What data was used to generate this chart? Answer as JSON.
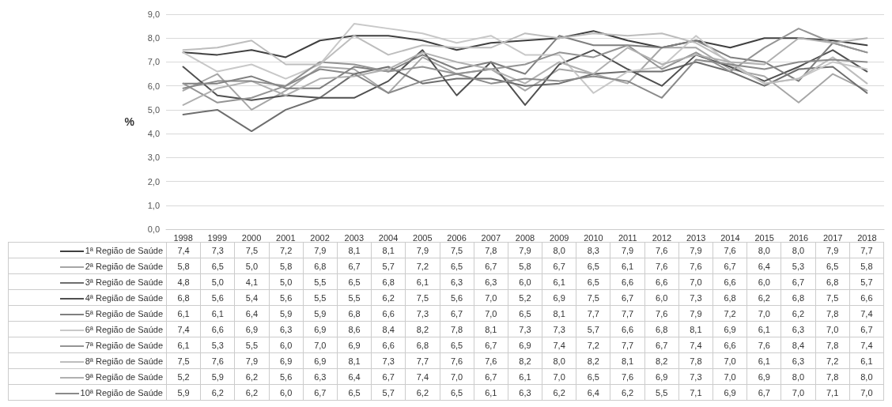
{
  "chart_data": {
    "type": "line",
    "ylabel": "%",
    "categories": [
      "1998",
      "1999",
      "2000",
      "2001",
      "2002",
      "2003",
      "2004",
      "2005",
      "2006",
      "2007",
      "2008",
      "2009",
      "2010",
      "2011",
      "2012",
      "2013",
      "2014",
      "2015",
      "2016",
      "2017",
      "2018"
    ],
    "series": [
      {
        "name": "1ª Região de Saúde",
        "color": "#404040",
        "values": [
          7.4,
          7.3,
          7.5,
          7.2,
          7.9,
          8.1,
          8.1,
          7.9,
          7.5,
          7.8,
          7.9,
          8.0,
          8.3,
          7.9,
          7.6,
          7.9,
          7.6,
          8.0,
          8.0,
          7.9,
          7.7
        ],
        "value_labels": [
          "7,4",
          "7,3",
          "7,5",
          "7,2",
          "7,9",
          "8,1",
          "8,1",
          "7,9",
          "7,5",
          "7,8",
          "7,9",
          "8,0",
          "8,3",
          "7,9",
          "7,6",
          "7,9",
          "7,6",
          "8,0",
          "8,0",
          "7,9",
          "7,7"
        ]
      },
      {
        "name": "2ª Região de Saúde",
        "color": "#a6a6a6",
        "values": [
          5.8,
          6.5,
          5.0,
          5.8,
          6.8,
          6.7,
          5.7,
          7.2,
          6.5,
          6.7,
          5.8,
          6.7,
          6.5,
          6.1,
          7.6,
          7.6,
          6.7,
          6.4,
          5.3,
          6.5,
          5.8
        ],
        "value_labels": [
          "5,8",
          "6,5",
          "5,0",
          "5,8",
          "6,8",
          "6,7",
          "5,7",
          "7,2",
          "6,5",
          "6,7",
          "5,8",
          "6,7",
          "6,5",
          "6,1",
          "7,6",
          "7,6",
          "6,7",
          "6,4",
          "5,3",
          "6,5",
          "5,8"
        ]
      },
      {
        "name": "3ª Região de Saúde",
        "color": "#6e6e6e",
        "values": [
          4.8,
          5.0,
          4.1,
          5.0,
          5.5,
          6.5,
          6.8,
          6.1,
          6.3,
          6.3,
          6.0,
          6.1,
          6.5,
          6.6,
          6.6,
          7.0,
          6.6,
          6.0,
          6.7,
          6.8,
          5.7
        ],
        "value_labels": [
          "4,8",
          "5,0",
          "4,1",
          "5,0",
          "5,5",
          "6,5",
          "6,8",
          "6,1",
          "6,3",
          "6,3",
          "6,0",
          "6,1",
          "6,5",
          "6,6",
          "6,6",
          "7,0",
          "6,6",
          "6,0",
          "6,7",
          "6,8",
          "5,7"
        ]
      },
      {
        "name": "4ª Região de Saúde",
        "color": "#505050",
        "values": [
          6.8,
          5.6,
          5.4,
          5.6,
          5.5,
          5.5,
          6.2,
          7.5,
          5.6,
          7.0,
          5.2,
          6.9,
          7.5,
          6.7,
          6.0,
          7.3,
          6.8,
          6.2,
          6.8,
          7.5,
          6.6
        ],
        "value_labels": [
          "6,8",
          "5,6",
          "5,4",
          "5,6",
          "5,5",
          "5,5",
          "6,2",
          "7,5",
          "5,6",
          "7,0",
          "5,2",
          "6,9",
          "7,5",
          "6,7",
          "6,0",
          "7,3",
          "6,8",
          "6,2",
          "6,8",
          "7,5",
          "6,6"
        ]
      },
      {
        "name": "5ª Região de Saúde",
        "color": "#7f7f7f",
        "values": [
          6.1,
          6.1,
          6.4,
          5.9,
          5.9,
          6.8,
          6.6,
          7.3,
          6.7,
          7.0,
          6.5,
          8.1,
          7.7,
          7.7,
          7.6,
          7.9,
          7.2,
          7.0,
          6.2,
          7.8,
          7.4
        ],
        "value_labels": [
          "6,1",
          "6,1",
          "6,4",
          "5,9",
          "5,9",
          "6,8",
          "6,6",
          "7,3",
          "6,7",
          "7,0",
          "6,5",
          "8,1",
          "7,7",
          "7,7",
          "7,6",
          "7,9",
          "7,2",
          "7,0",
          "6,2",
          "7,8",
          "7,4"
        ]
      },
      {
        "name": "6ª Região de Saúde",
        "color": "#c8c8c8",
        "values": [
          7.4,
          6.6,
          6.9,
          6.3,
          6.9,
          8.6,
          8.4,
          8.2,
          7.8,
          8.1,
          7.3,
          7.3,
          5.7,
          6.6,
          6.8,
          8.1,
          6.9,
          6.1,
          6.3,
          7.0,
          6.7
        ],
        "value_labels": [
          "7,4",
          "6,6",
          "6,9",
          "6,3",
          "6,9",
          "8,6",
          "8,4",
          "8,2",
          "7,8",
          "8,1",
          "7,3",
          "7,3",
          "5,7",
          "6,6",
          "6,8",
          "8,1",
          "6,9",
          "6,1",
          "6,3",
          "7,0",
          "6,7"
        ]
      },
      {
        "name": "7ª Região de Saúde",
        "color": "#949494",
        "values": [
          6.1,
          5.3,
          5.5,
          6.0,
          7.0,
          6.9,
          6.6,
          6.8,
          6.5,
          6.7,
          6.9,
          7.4,
          7.2,
          7.7,
          6.7,
          7.4,
          6.6,
          7.6,
          8.4,
          7.8,
          7.4
        ],
        "value_labels": [
          "6,1",
          "5,3",
          "5,5",
          "6,0",
          "7,0",
          "6,9",
          "6,6",
          "6,8",
          "6,5",
          "6,7",
          "6,9",
          "7,4",
          "7,2",
          "7,7",
          "6,7",
          "7,4",
          "6,6",
          "7,6",
          "8,4",
          "7,8",
          "7,4"
        ]
      },
      {
        "name": "8ª Região de Saúde",
        "color": "#bdbdbd",
        "values": [
          7.5,
          7.6,
          7.9,
          6.9,
          6.9,
          8.1,
          7.3,
          7.7,
          7.6,
          7.6,
          8.2,
          8.0,
          8.2,
          8.1,
          8.2,
          7.8,
          7.0,
          6.1,
          6.3,
          7.2,
          6.1
        ],
        "value_labels": [
          "7,5",
          "7,6",
          "7,9",
          "6,9",
          "6,9",
          "8,1",
          "7,3",
          "7,7",
          "7,6",
          "7,6",
          "8,2",
          "8,0",
          "8,2",
          "8,1",
          "8,2",
          "7,8",
          "7,0",
          "6,1",
          "6,3",
          "7,2",
          "6,1"
        ]
      },
      {
        "name": "9ª Região de Saúde",
        "color": "#b0b0b0",
        "values": [
          5.2,
          5.9,
          6.2,
          5.6,
          6.3,
          6.4,
          6.7,
          7.4,
          7.0,
          6.7,
          6.1,
          7.0,
          6.5,
          7.6,
          6.9,
          7.3,
          7.0,
          6.9,
          8.0,
          7.8,
          8.0
        ],
        "value_labels": [
          "5,2",
          "5,9",
          "6,2",
          "5,6",
          "6,3",
          "6,4",
          "6,7",
          "7,4",
          "7,0",
          "6,7",
          "6,1",
          "7,0",
          "6,5",
          "7,6",
          "6,9",
          "7,3",
          "7,0",
          "6,9",
          "8,0",
          "7,8",
          "8,0"
        ]
      },
      {
        "name": "10ª Região de Saúde",
        "color": "#8a8a8a",
        "values": [
          5.9,
          6.2,
          6.2,
          6.0,
          6.7,
          6.5,
          5.7,
          6.2,
          6.5,
          6.1,
          6.3,
          6.2,
          6.4,
          6.2,
          5.5,
          7.1,
          6.9,
          6.7,
          7.0,
          7.1,
          7.0
        ],
        "value_labels": [
          "5,9",
          "6,2",
          "6,2",
          "6,0",
          "6,7",
          "6,5",
          "5,7",
          "6,2",
          "6,5",
          "6,1",
          "6,3",
          "6,2",
          "6,4",
          "6,2",
          "5,5",
          "7,1",
          "6,9",
          "6,7",
          "7,0",
          "7,1",
          "7,0"
        ]
      }
    ],
    "ylim": [
      0,
      9
    ],
    "yticks": [
      {
        "value": 0,
        "label": "0,0"
      },
      {
        "value": 1,
        "label": "1,0"
      },
      {
        "value": 2,
        "label": "2,0"
      },
      {
        "value": 3,
        "label": "3,0"
      },
      {
        "value": 4,
        "label": "4,0"
      },
      {
        "value": 5,
        "label": "5,0"
      },
      {
        "value": 6,
        "label": "6,0"
      },
      {
        "value": 7,
        "label": "7,0"
      },
      {
        "value": 8,
        "label": "8,0"
      },
      {
        "value": 9,
        "label": "9,0"
      }
    ],
    "grid": "y",
    "legend": "bottom left",
    "marker": "none",
    "line_style": "solid"
  }
}
